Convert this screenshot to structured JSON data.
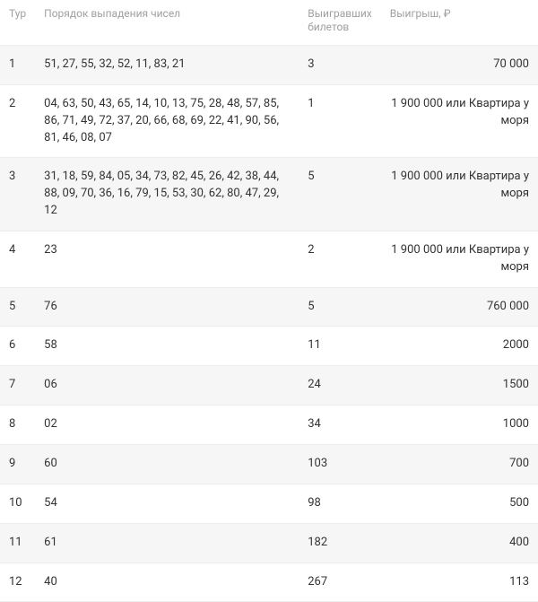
{
  "table": {
    "columns": {
      "tur": "Тур",
      "numbers": "Порядок выпадения чисел",
      "tickets": "Выигравших билетов",
      "prize": "Выигрыш, ₽"
    },
    "rows": [
      {
        "tur": "1",
        "numbers": "51, 27, 55, 32, 52, 11, 83, 21",
        "tickets": "3",
        "prize": "70 000"
      },
      {
        "tur": "2",
        "numbers": "04, 63, 50, 43, 65, 14, 10, 13, 75, 28, 48, 57, 85, 86, 71, 49, 72, 37, 20, 66, 68, 69, 22, 41, 90, 56, 81, 46, 08, 07",
        "tickets": "1",
        "prize": "1 900 000 или Квартира у моря"
      },
      {
        "tur": "3",
        "numbers": "31, 18, 59, 84, 05, 34, 73, 82, 45, 26, 42, 38, 44, 88, 09, 70, 36, 16, 79, 15, 53, 30, 62, 80, 47, 29, 12",
        "tickets": "5",
        "prize": "1 900 000 или Квартира у моря"
      },
      {
        "tur": "4",
        "numbers": "23",
        "tickets": "2",
        "prize": "1 900 000 или Квартира у моря"
      },
      {
        "tur": "5",
        "numbers": "76",
        "tickets": "5",
        "prize": "760 000"
      },
      {
        "tur": "6",
        "numbers": "58",
        "tickets": "11",
        "prize": "2000"
      },
      {
        "tur": "7",
        "numbers": "06",
        "tickets": "24",
        "prize": "1500"
      },
      {
        "tur": "8",
        "numbers": "02",
        "tickets": "34",
        "prize": "1000"
      },
      {
        "tur": "9",
        "numbers": "60",
        "tickets": "103",
        "prize": "700"
      },
      {
        "tur": "10",
        "numbers": "54",
        "tickets": "98",
        "prize": "500"
      },
      {
        "tur": "11",
        "numbers": "61",
        "tickets": "182",
        "prize": "400"
      },
      {
        "tur": "12",
        "numbers": "40",
        "tickets": "267",
        "prize": "113"
      }
    ],
    "alt_row_bg": "#f6f6f6",
    "border_color": "#ededed",
    "header_color": "#a0a0a0",
    "text_color": "#333333",
    "font_size_body": 13,
    "font_size_header": 12
  }
}
